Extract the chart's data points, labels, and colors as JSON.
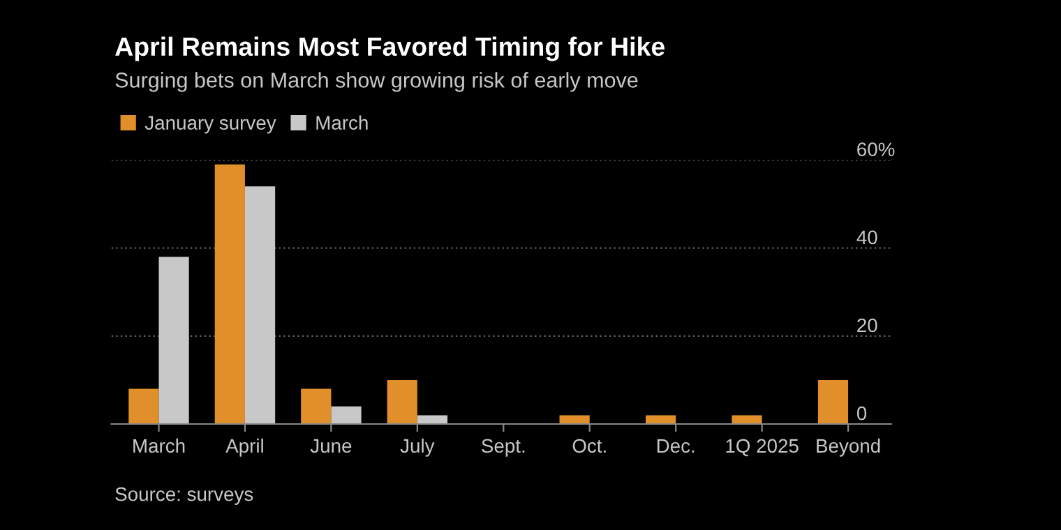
{
  "chart_data": {
    "type": "bar",
    "title": "April Remains Most Favored Timing for Hike",
    "subtitle": "Surging bets on March show growing risk of early move",
    "categories": [
      "March",
      "April",
      "June",
      "July",
      "Sept.",
      "Oct.",
      "Dec.",
      "1Q 2025",
      "Beyond"
    ],
    "series": [
      {
        "name": "January survey",
        "color": "#e08f2a",
        "values": [
          8,
          59,
          8,
          10,
          0,
          2,
          2,
          2,
          10
        ]
      },
      {
        "name": "March",
        "color": "#c8c8c8",
        "values": [
          38,
          54,
          4,
          2,
          0,
          0,
          0,
          0,
          0
        ]
      }
    ],
    "ylim": [
      0,
      60
    ],
    "yticks": [
      0,
      20,
      40,
      {
        "value": 60,
        "label": "60%"
      }
    ],
    "grid": "y",
    "legend": "top left",
    "annotations": [
      "Source: surveys"
    ]
  }
}
